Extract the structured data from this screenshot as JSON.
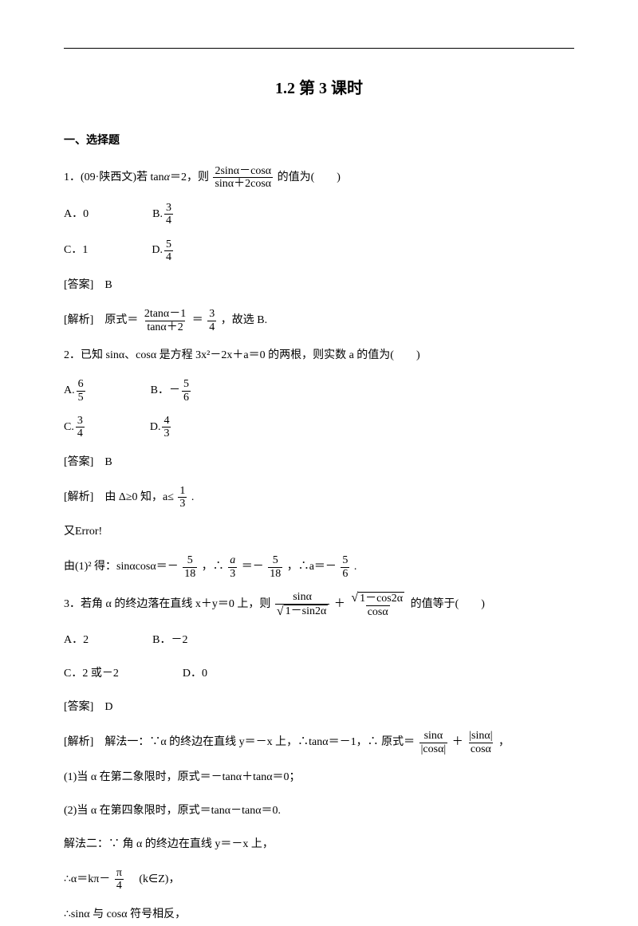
{
  "title": "1.2  第 3 课时",
  "section_head": "一、选择题",
  "q1": {
    "stem_a": "1．(09·陕西文)若 tan",
    "alpha": "α",
    "stem_b": "＝2，则",
    "frac_num": "2sinα－cosα",
    "frac_den": "sinα＋2cosα",
    "stem_c": " 的值为(　　)",
    "opts": [
      {
        "l": "A．0",
        "f": null
      },
      {
        "l": "B.",
        "f": {
          "n": "3",
          "d": "4"
        }
      },
      {
        "l": "C．1",
        "f": null
      },
      {
        "l": "D.",
        "f": {
          "n": "5",
          "d": "4"
        }
      }
    ],
    "ans": "[答案]　B",
    "expl_a": "[解析]　原式＝",
    "ef_num": "2tanα－1",
    "ef_den": "tanα＋2",
    "eq": "＝",
    "rf": {
      "n": "3",
      "d": "4"
    },
    "expl_b": "，故选 B."
  },
  "q2": {
    "stem": "2．已知 sinα、cosα 是方程 3x²－2x＋a＝0 的两根，则实数 a 的值为(　　)",
    "opts": [
      {
        "l": "A.",
        "f": {
          "n": "6",
          "d": "5"
        }
      },
      {
        "l": "B．－",
        "f": {
          "n": "5",
          "d": "6"
        }
      },
      {
        "l": "C.",
        "f": {
          "n": "3",
          "d": "4"
        }
      },
      {
        "l": "D.",
        "f": {
          "n": "4",
          "d": "3"
        }
      }
    ],
    "ans": "[答案]　B",
    "e1a": "[解析]　由 Δ≥0 知，a≤",
    "e1f": {
      "n": "1",
      "d": "3"
    },
    "e1b": ".",
    "err": "又Error!",
    "e2a": "由(1)² 得：sinαcosα＝－",
    "f1": {
      "n": "5",
      "d": "18"
    },
    "e2b": "，∴",
    "f2a": {
      "n": "a",
      "d": "3"
    },
    "e2c": "＝－",
    "f2": {
      "n": "5",
      "d": "18"
    },
    "e2d": "，∴a＝－",
    "f3": {
      "n": "5",
      "d": "6"
    },
    "e2e": "."
  },
  "q3": {
    "stem_a": "3．若角 α 的终边落在直线 x＋y＝0 上，则",
    "t1n": "sinα",
    "t1d": "1－sin2α",
    "plus": "＋",
    "t2n": "1－cos2α",
    "t2d": "cosα",
    "stem_b": " 的值等于(　　)",
    "opts": [
      "A．2",
      "B．－2",
      "C．2 或－2",
      "D．0"
    ],
    "ans": "[答案]　D",
    "e1": "[解析]　解法一：∵α 的终边在直线 y＝－x 上，∴tanα＝－1，∴ 原式＝",
    "f1n": "sinα",
    "f1d": "|cosα|",
    "e1p": "＋",
    "f2n": "|sinα|",
    "f2d": "cosα",
    "e1e": "，",
    "e2": "(1)当 α 在第二象限时，原式＝－tanα＋tanα＝0；",
    "e3": "(2)当 α 在第四象限时，原式＝tanα－tanα＝0.",
    "e4": "解法二：∵ 角 α 的终边在直线 y＝－x 上，",
    "e5a": "∴α＝kπ－",
    "e5f": {
      "n": "π",
      "d": "4"
    },
    "e5b": "　(k∈Z)，",
    "e6": "∴sinα 与 cosα 符号相反，"
  }
}
